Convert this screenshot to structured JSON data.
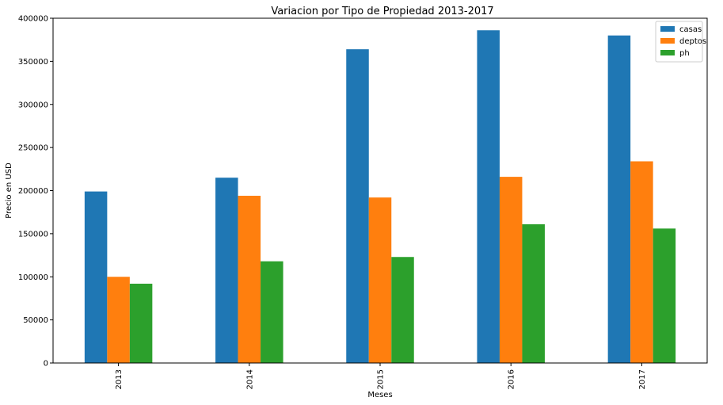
{
  "chart_data": {
    "type": "bar",
    "title": "Variacion por Tipo de Propiedad 2013-2017",
    "xlabel": "Meses",
    "ylabel": "Precio en USD",
    "categories": [
      "2013",
      "2014",
      "2015",
      "2016",
      "2017"
    ],
    "series": [
      {
        "name": "casas",
        "color": "#1f77b4",
        "values": [
          199000,
          215000,
          364000,
          386000,
          380000
        ]
      },
      {
        "name": "deptos",
        "color": "#ff7f0e",
        "values": [
          100000,
          194000,
          192000,
          216000,
          234000
        ]
      },
      {
        "name": "ph",
        "color": "#2ca02c",
        "values": [
          92000,
          118000,
          123000,
          161000,
          156000
        ]
      }
    ],
    "ylim": [
      0,
      400000
    ],
    "yticks": [
      "0",
      "50000",
      "100000",
      "150000",
      "200000",
      "250000",
      "300000",
      "350000",
      "400000"
    ],
    "grid": false,
    "legend": "top-right"
  }
}
